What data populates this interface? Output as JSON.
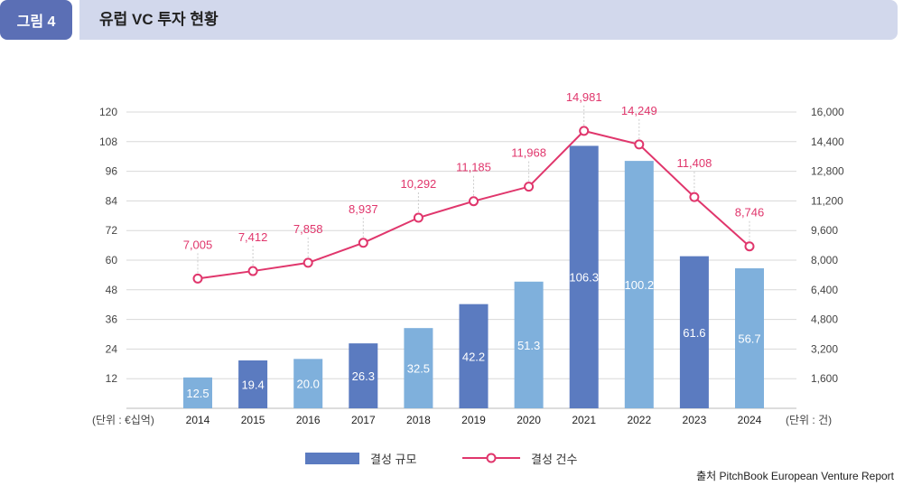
{
  "header": {
    "figure_label": "그림 4",
    "title": "유럽 VC 투자 현황"
  },
  "colors": {
    "badge": "#5b6fb5",
    "title_bar": "#d2d8ec",
    "bar_dark": "#5b7bc0",
    "bar_light": "#7fb0dc",
    "line": "#e0366c"
  },
  "chart_data": {
    "type": "bar",
    "categories": [
      "2014",
      "2015",
      "2016",
      "2017",
      "2018",
      "2019",
      "2020",
      "2021",
      "2022",
      "2023",
      "2024"
    ],
    "series": [
      {
        "name": "결성 규모",
        "type": "bar",
        "axis": "left",
        "values": [
          12.5,
          19.4,
          20.0,
          26.3,
          32.5,
          42.2,
          51.3,
          106.3,
          100.2,
          61.6,
          56.7
        ],
        "labels": [
          "12.5",
          "19.4",
          "20.0",
          "26.3",
          "32.5",
          "42.2",
          "51.3",
          "106.3",
          "100.2",
          "61.6",
          "56.7"
        ],
        "shades": [
          "light",
          "dark",
          "light",
          "dark",
          "light",
          "dark",
          "light",
          "dark",
          "light",
          "dark",
          "light"
        ]
      },
      {
        "name": "결성 건수",
        "type": "line",
        "axis": "right",
        "values": [
          7005,
          7412,
          7858,
          8937,
          10292,
          11185,
          11968,
          14981,
          14249,
          11408,
          8746
        ],
        "labels": [
          "7,005",
          "7,412",
          "7,858",
          "8,937",
          "10,292",
          "11,185",
          "11,968",
          "14,981",
          "14,249",
          "11,408",
          "8,746"
        ]
      }
    ],
    "left_axis": {
      "unit_label": "(단위 : €십억)",
      "ylim": [
        0,
        120
      ],
      "ticks": [
        12,
        24,
        36,
        48,
        60,
        72,
        84,
        96,
        108,
        120
      ],
      "tick_labels": [
        "12",
        "24",
        "36",
        "48",
        "60",
        "72",
        "84",
        "96",
        "108",
        "120"
      ]
    },
    "right_axis": {
      "unit_label": "(단위 : 건)",
      "ylim": [
        0,
        16000
      ],
      "ticks": [
        1600,
        3200,
        4800,
        6400,
        8000,
        9600,
        11200,
        12800,
        14400,
        16000
      ],
      "tick_labels": [
        "1,600",
        "3,200",
        "4,800",
        "6,400",
        "8,000",
        "9,600",
        "11,200",
        "12,800",
        "14,400",
        "16,000"
      ]
    },
    "grid": true,
    "legend_position": "bottom"
  },
  "legend": {
    "bar_label": "결성 규모",
    "line_label": "결성 건수"
  },
  "source": "출처 PitchBook European Venture Report"
}
